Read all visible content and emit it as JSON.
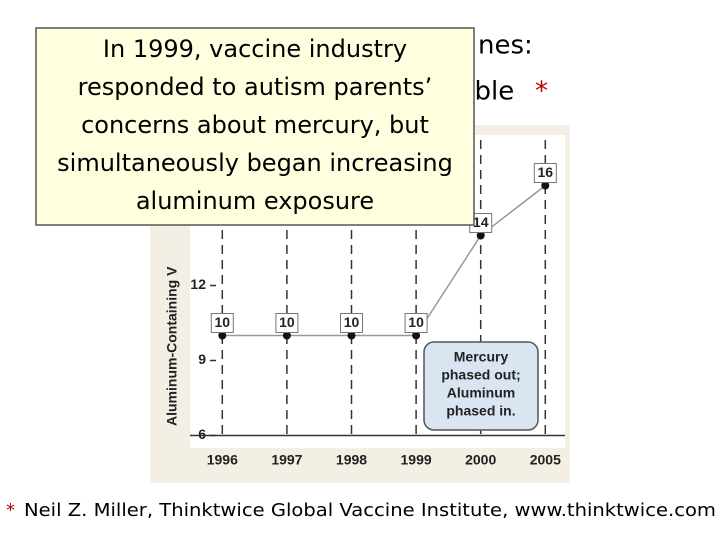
{
  "slide": {
    "title_fragments": [
      "nes:",
      "nble"
    ],
    "title_mark": "*",
    "overlay_lines": [
      "In 1999, vaccine industry",
      "responded to autism parents’",
      "concerns about mercury, but",
      "simultaneously began increasing",
      "aluminum exposure"
    ],
    "footnote_mark": "*",
    "footnote": "Neil Z. Miller, Thinktwice Global Vaccine Institute, www.thinktwice.com"
  },
  "chart_data": {
    "type": "line",
    "ylabel": "Aluminum-Containing V",
    "categories": [
      "1996",
      "1997",
      "1998",
      "1999",
      "2000",
      "2005"
    ],
    "values": [
      10,
      10,
      10,
      10,
      14,
      16
    ],
    "color": "#999999",
    "ylim": [
      5.5,
      17.5
    ],
    "yticks": [
      6,
      9,
      12
    ],
    "grid": true,
    "annotation": [
      "Mercury",
      "phased out;",
      "Aluminum",
      "phased in."
    ]
  }
}
